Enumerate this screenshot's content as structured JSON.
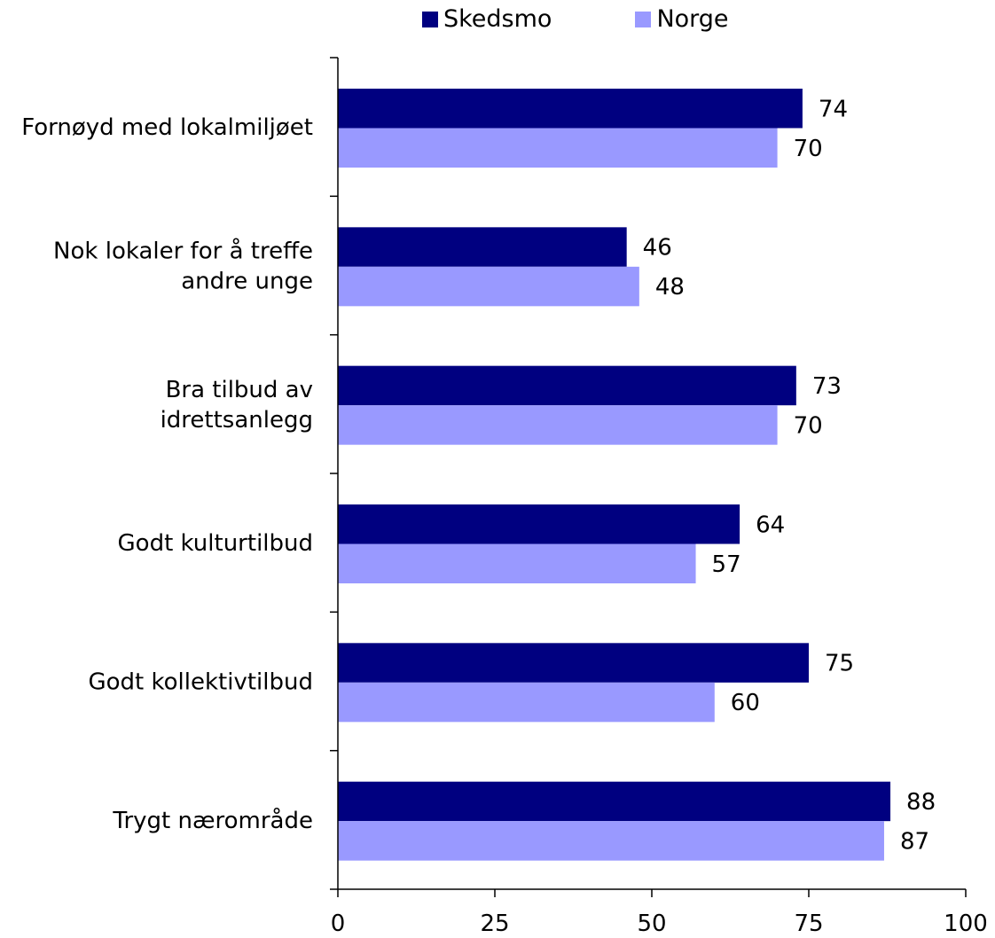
{
  "chart_data": {
    "type": "bar",
    "orientation": "horizontal",
    "categories": [
      "Fornøyd med lokalmiljøet",
      "Nok lokaler for å treffe andre unge",
      "Bra tilbud av idrettsanlegg",
      "Godt kulturtilbud",
      "Godt kollektivtilbud",
      "Trygt nærområde"
    ],
    "series": [
      {
        "name": "Skedsmo",
        "color": "#000080",
        "values": [
          74,
          46,
          73,
          64,
          75,
          88
        ]
      },
      {
        "name": "Norge",
        "color": "#9999ff",
        "values": [
          70,
          48,
          70,
          57,
          60,
          87
        ]
      }
    ],
    "xlim": [
      0,
      100
    ],
    "xticks": [
      0,
      25,
      50,
      75,
      100
    ],
    "grid": false,
    "legend_position": "top"
  }
}
